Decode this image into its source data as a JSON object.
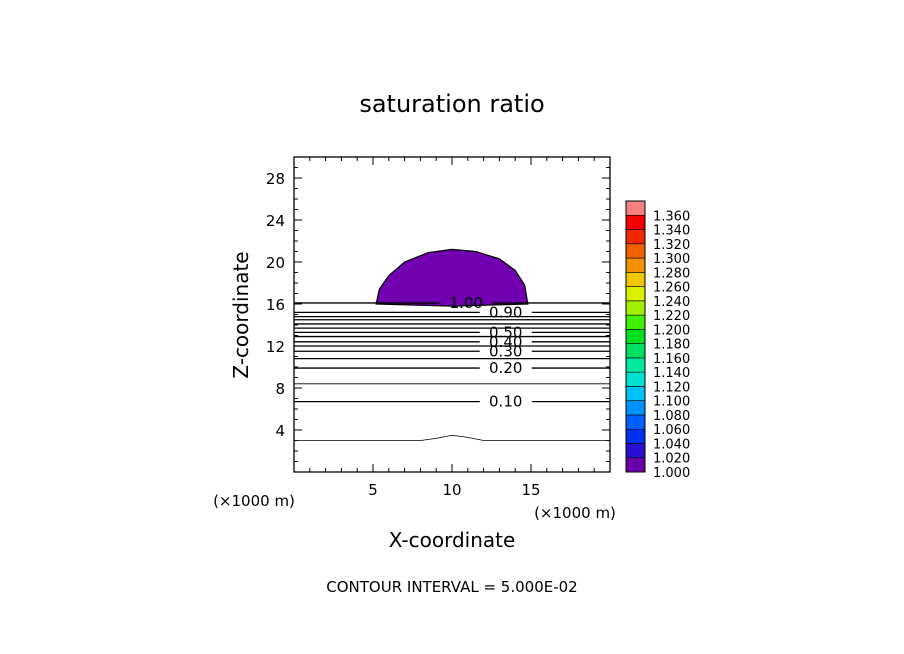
{
  "chart_data": {
    "type": "contour",
    "title": "saturation ratio",
    "xlabel": "X-coordinate",
    "ylabel": "Z-coordinate",
    "x_unit": "(×1000 m)",
    "x_unit_right": "(×1000 m)",
    "xlim": [
      0,
      20
    ],
    "ylim": [
      0,
      30
    ],
    "x_ticks": [
      5,
      10,
      15
    ],
    "y_ticks": [
      4,
      8,
      12,
      16,
      20,
      24,
      28
    ],
    "contour_interval_text": "CONTOUR INTERVAL = 5.000E-02",
    "contour_lines": [
      {
        "z": 6.7,
        "label": "0.10"
      },
      {
        "z": 8.4
      },
      {
        "z": 9.9,
        "label": "0.20"
      },
      {
        "z": 10.8
      },
      {
        "z": 11.5,
        "label": "0.30"
      },
      {
        "z": 12.0
      },
      {
        "z": 12.4,
        "label": "0.40"
      },
      {
        "z": 12.9
      },
      {
        "z": 13.3,
        "label": "0.50"
      },
      {
        "z": 13.7
      },
      {
        "z": 14.1
      },
      {
        "z": 14.5
      },
      {
        "z": 14.8
      },
      {
        "z": 15.2,
        "label": "0.90"
      },
      {
        "z": 16.1,
        "label": "1.00"
      }
    ],
    "bottom_contour": [
      [
        0,
        3.0
      ],
      [
        8,
        3.0
      ],
      [
        9,
        3.2
      ],
      [
        10,
        3.5
      ],
      [
        11,
        3.3
      ],
      [
        12,
        3.0
      ],
      [
        20,
        3.0
      ]
    ],
    "filled_region": {
      "level": 1.0,
      "outline": [
        [
          5.2,
          16.0
        ],
        [
          5.4,
          17.4
        ],
        [
          6.0,
          18.7
        ],
        [
          7.0,
          20.0
        ],
        [
          8.5,
          20.9
        ],
        [
          10.0,
          21.2
        ],
        [
          11.5,
          21.0
        ],
        [
          13.0,
          20.3
        ],
        [
          14.0,
          19.2
        ],
        [
          14.6,
          17.8
        ],
        [
          14.8,
          16.0
        ],
        [
          10.0,
          15.8
        ]
      ],
      "color": "#7000b0"
    },
    "colorbar": {
      "levels": [
        "1.000",
        "1.020",
        "1.040",
        "1.060",
        "1.080",
        "1.100",
        "1.120",
        "1.140",
        "1.160",
        "1.180",
        "1.200",
        "1.220",
        "1.240",
        "1.260",
        "1.280",
        "1.300",
        "1.320",
        "1.340",
        "1.360"
      ],
      "colors": [
        "#6a00a8",
        "#2a0fd0",
        "#0030f0",
        "#0060ff",
        "#0090ff",
        "#00c0f8",
        "#00e0d0",
        "#00e8a0",
        "#00e060",
        "#00e020",
        "#40f000",
        "#a0f000",
        "#d8f000",
        "#f0c800",
        "#f09000",
        "#f06000",
        "#f02800",
        "#f00000",
        "#f88080"
      ]
    }
  }
}
